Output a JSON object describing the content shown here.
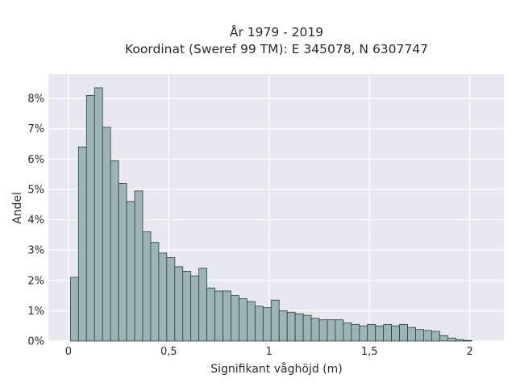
{
  "chart_data": {
    "type": "bar",
    "title": "År 1979 - 2019",
    "subtitle": "Koordinat (Sweref 99 TM): E 345078, N 6307747",
    "xlabel": "Signifikant våghöjd (m)",
    "ylabel": "Andel",
    "bin_width": 0.04,
    "x_start": 0.01,
    "xlim": [
      -0.1,
      2.17
    ],
    "ylim": [
      0,
      8.8
    ],
    "x_ticks": [
      {
        "value": 0,
        "label": "0"
      },
      {
        "value": 0.5,
        "label": "0,5"
      },
      {
        "value": 1,
        "label": "1"
      },
      {
        "value": 1.5,
        "label": "1,5"
      },
      {
        "value": 2,
        "label": "2"
      }
    ],
    "y_ticks": [
      {
        "value": 0,
        "label": "0%"
      },
      {
        "value": 1,
        "label": "1%"
      },
      {
        "value": 2,
        "label": "2%"
      },
      {
        "value": 3,
        "label": "3%"
      },
      {
        "value": 4,
        "label": "4%"
      },
      {
        "value": 5,
        "label": "5%"
      },
      {
        "value": 6,
        "label": "6%"
      },
      {
        "value": 7,
        "label": "7%"
      },
      {
        "value": 8,
        "label": "8%"
      }
    ],
    "values": [
      2.1,
      6.4,
      8.1,
      8.35,
      7.05,
      5.95,
      5.2,
      4.6,
      4.95,
      3.6,
      3.25,
      2.9,
      2.75,
      2.45,
      2.3,
      2.15,
      2.4,
      1.75,
      1.65,
      1.65,
      1.5,
      1.4,
      1.3,
      1.15,
      1.1,
      1.35,
      1.0,
      0.95,
      0.9,
      0.85,
      0.75,
      0.7,
      0.7,
      0.7,
      0.6,
      0.55,
      0.5,
      0.55,
      0.5,
      0.55,
      0.5,
      0.55,
      0.45,
      0.38,
      0.35,
      0.32,
      0.18,
      0.1,
      0.05,
      0.02
    ],
    "grid": true,
    "colors": {
      "plot_background": "#e8e8f0",
      "grid": "#ffffff",
      "bar_fill": "#9db4b4",
      "bar_stroke": "#2f3d3d",
      "text": "#2a2a2a"
    }
  }
}
